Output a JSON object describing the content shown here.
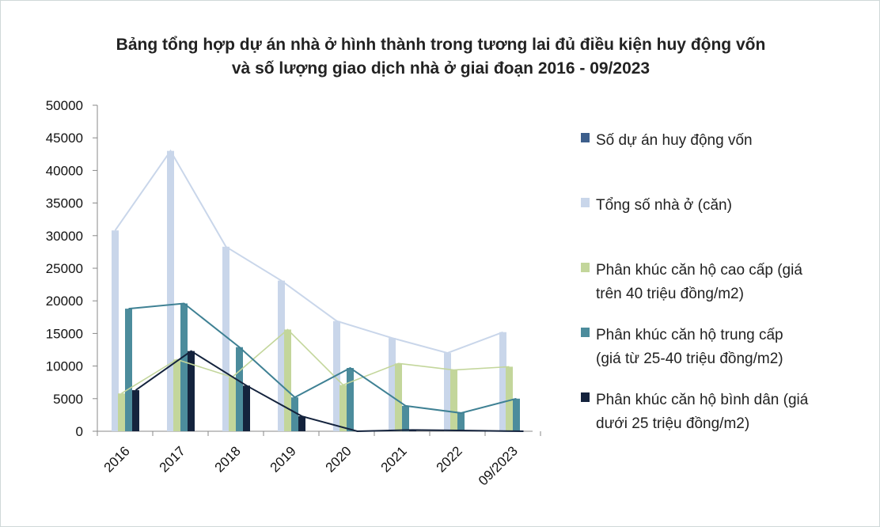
{
  "chart_data": {
    "type": "bar",
    "title": "Bảng tổng hợp dự án nhà ở hình thành trong tương lai đủ điều kiện huy động vốn và số lượng giao dịch nhà ở giai đoạn 2016 - 09/2023",
    "title_lines": [
      "Bảng tổng hợp dự án nhà ở hình thành trong tương lai đủ điều kiện huy động vốn",
      "và số lượng giao dịch nhà ở giai đoạn 2016 - 09/2023"
    ],
    "categories": [
      "2016",
      "2017",
      "2018",
      "2019",
      "2020",
      "2021",
      "2022",
      "09/2023"
    ],
    "yticks": [
      "0",
      "5000",
      "10000",
      "15000",
      "20000",
      "25000",
      "30000",
      "35000",
      "40000",
      "45000",
      "50000"
    ],
    "ylim": [
      0,
      50000
    ],
    "grid": false,
    "legend_position": "right",
    "series": [
      {
        "name": "Số dự án huy động vốn",
        "color": "#4f6fa0",
        "values": [
          0,
          0,
          0,
          0,
          0,
          0,
          0,
          0
        ]
      },
      {
        "name": "Tổng số nhà ở (căn)",
        "color": "#c9d6ea",
        "values": [
          30800,
          43000,
          28300,
          23100,
          16900,
          14300,
          12000,
          15200
        ]
      },
      {
        "name": "Phân khúc căn hộ cao cấp (giá trên 40 triệu đồng/m2)",
        "color": "#c3d69b",
        "values": [
          5800,
          11000,
          8300,
          15600,
          7100,
          10400,
          9400,
          9900
        ]
      },
      {
        "name": "Phân khúc căn hộ trung cấp (giá từ 25-40 triệu đồng/m2)",
        "color": "#4c8c9c",
        "values": [
          18800,
          19600,
          12900,
          5200,
          9700,
          3900,
          2800,
          5000
        ]
      },
      {
        "name": "Phân khúc căn hộ bình dân (giá dưới 25 triệu đồng/m2)",
        "color": "#14233d",
        "values": [
          6300,
          12300,
          7000,
          2300,
          0,
          200,
          100,
          0
        ]
      }
    ],
    "legend": [
      {
        "lines": [
          "Số dự án huy động vốn"
        ],
        "color": "#3d5f8c"
      },
      {
        "lines": [
          "Tổng số nhà ở (căn)"
        ],
        "color": "#c9d6ea"
      },
      {
        "lines": [
          "Phân khúc căn hộ cao cấp (giá",
          "trên 40 triệu đồng/m2)"
        ],
        "color": "#c3d69b"
      },
      {
        "lines": [
          "Phân khúc căn hộ trung cấp",
          "(giá từ 25-40 triệu đồng/m2)"
        ],
        "color": "#4c8c9c"
      },
      {
        "lines": [
          "Phân khúc căn hộ bình dân (giá",
          "dưới 25 triệu đồng/m2)"
        ],
        "color": "#14233d"
      }
    ]
  }
}
